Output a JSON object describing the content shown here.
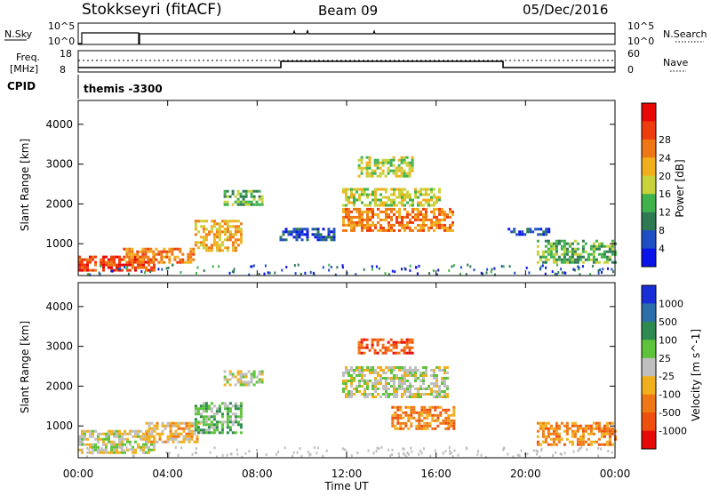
{
  "header": {
    "station": "Stokkseyri (fitACF)",
    "beam": "Beam 09",
    "date": "05/Dec/2016"
  },
  "top_panel": {
    "nsky_label": "N.Sky",
    "nsearch_label": "N.Search",
    "tick_hi": "10^5",
    "tick_lo": "10^0"
  },
  "freq_panel": {
    "freq_label": "Freq.",
    "unit_label": "[MHz]",
    "nave_label": "Nave",
    "left_ticks": [
      "18",
      "8"
    ],
    "right_ticks": [
      "60",
      "0"
    ]
  },
  "cpid": {
    "label": "CPID",
    "value": "themis -3300"
  },
  "colors": {
    "power_scale": [
      "#0a14e8",
      "#1e4fc4",
      "#2f7a52",
      "#3fb24c",
      "#c8d23a",
      "#f0b01e",
      "#f07814",
      "#ee3c0c",
      "#e80808"
    ],
    "velocity_scale": [
      "#1a2ed8",
      "#2b6ea8",
      "#2f8a50",
      "#5ec23a",
      "#bfbfbf",
      "#f0b01e",
      "#f07814",
      "#ef4f0c",
      "#e80a0a"
    ]
  },
  "chart_data": [
    {
      "type": "heatmap",
      "name": "power",
      "xlabel": "Time UT",
      "ylabel": "Slant Range [km]",
      "x_ticks": [
        "00:00",
        "04:00",
        "08:00",
        "12:00",
        "16:00",
        "20:00",
        "00:00"
      ],
      "y_ticks": [
        1000,
        2000,
        3000,
        4000
      ],
      "xlim_hours": [
        0,
        24
      ],
      "ylim_km": [
        200,
        4600
      ],
      "colorbar_label": "Power [dB]",
      "colorbar_ticks": [
        4,
        8,
        12,
        16,
        20,
        24,
        28
      ],
      "features": [
        {
          "t0": 0.0,
          "t1": 3.4,
          "r0": 300,
          "r1": 700,
          "level": 7
        },
        {
          "t0": 2.0,
          "t1": 5.2,
          "r0": 500,
          "r1": 900,
          "level": 6
        },
        {
          "t0": 5.2,
          "t1": 7.3,
          "r0": 800,
          "r1": 1600,
          "level": 5
        },
        {
          "t0": 6.5,
          "t1": 8.2,
          "r0": 2000,
          "r1": 2350,
          "level": 3
        },
        {
          "t0": 9.0,
          "t1": 11.5,
          "r0": 1100,
          "r1": 1400,
          "level": 1
        },
        {
          "t0": 11.8,
          "t1": 16.8,
          "r0": 1300,
          "r1": 1900,
          "level": 6
        },
        {
          "t0": 11.8,
          "t1": 16.2,
          "r0": 1950,
          "r1": 2400,
          "level": 4
        },
        {
          "t0": 12.5,
          "t1": 15.0,
          "r0": 2700,
          "r1": 3200,
          "level": 4
        },
        {
          "t0": 19.2,
          "t1": 21.2,
          "r0": 1200,
          "r1": 1400,
          "level": 1
        },
        {
          "t0": 20.5,
          "t1": 24.0,
          "r0": 500,
          "r1": 1100,
          "level": 3
        }
      ]
    },
    {
      "type": "heatmap",
      "name": "velocity",
      "xlabel": "Time UT",
      "ylabel": "Slant Range [km]",
      "x_ticks": [
        "00:00",
        "04:00",
        "08:00",
        "12:00",
        "16:00",
        "20:00",
        "00:00"
      ],
      "y_ticks": [
        1000,
        2000,
        3000,
        4000
      ],
      "xlim_hours": [
        0,
        24
      ],
      "ylim_km": [
        200,
        4600
      ],
      "colorbar_label": "Velocity [m s^-1]",
      "colorbar_ticks": [
        1000,
        500,
        100,
        25,
        -25,
        -100,
        -500,
        -1000
      ],
      "features": [
        {
          "t0": 0.0,
          "t1": 3.4,
          "r0": 300,
          "r1": 900,
          "level": 4
        },
        {
          "t0": 3.0,
          "t1": 5.5,
          "r0": 600,
          "r1": 1100,
          "level": 5
        },
        {
          "t0": 5.2,
          "t1": 7.3,
          "r0": 800,
          "r1": 1600,
          "level": 3
        },
        {
          "t0": 6.5,
          "t1": 8.2,
          "r0": 2000,
          "r1": 2400,
          "level": 4
        },
        {
          "t0": 11.8,
          "t1": 16.5,
          "r0": 1700,
          "r1": 2500,
          "level": 4
        },
        {
          "t0": 14.0,
          "t1": 16.8,
          "r0": 900,
          "r1": 1500,
          "level": 6
        },
        {
          "t0": 12.5,
          "t1": 15.0,
          "r0": 2800,
          "r1": 3200,
          "level": 7
        },
        {
          "t0": 20.5,
          "t1": 24.0,
          "r0": 500,
          "r1": 1100,
          "level": 6
        }
      ]
    }
  ]
}
